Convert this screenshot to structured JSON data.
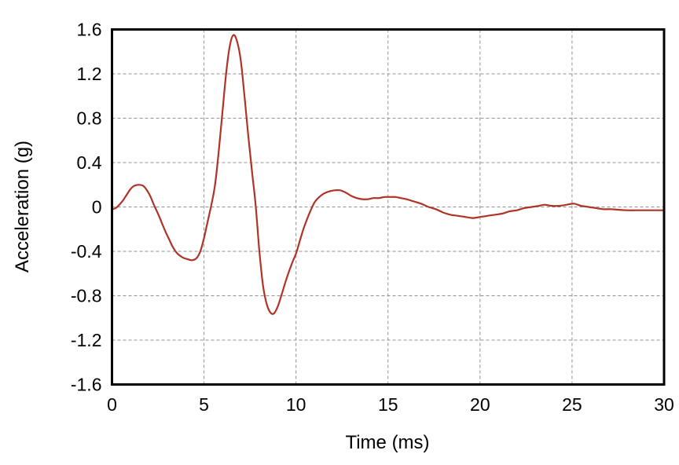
{
  "chart_data": {
    "type": "line",
    "xlabel": "Time (ms)",
    "ylabel": "Acceleration (g)",
    "xlim": [
      0,
      30
    ],
    "ylim": [
      -1.6,
      1.6
    ],
    "x_ticks": [
      0,
      5,
      10,
      15,
      20,
      25,
      30
    ],
    "x_tick_labels": [
      "0",
      "5",
      "10",
      "15",
      "20",
      "25",
      "30"
    ],
    "y_ticks": [
      -1.6,
      -1.2,
      -0.8,
      -0.4,
      0,
      0.4,
      0.8,
      1.2,
      1.6
    ],
    "y_tick_labels": [
      "-1.6",
      "-1.2",
      "-0.8",
      "-0.4",
      "0",
      "0.4",
      "0.8",
      "1.2",
      "1.6"
    ],
    "grid": true,
    "grid_style": "dashed",
    "legend": "none",
    "colors": {
      "line": "#b03327",
      "grid": "#909090",
      "axis": "#000000",
      "background": "#ffffff"
    },
    "series": [
      {
        "name": "acceleration",
        "color": "#b03327",
        "points": [
          [
            0.0,
            -0.02
          ],
          [
            0.2,
            -0.01
          ],
          [
            0.4,
            0.02
          ],
          [
            0.6,
            0.06
          ],
          [
            0.8,
            0.11
          ],
          [
            1.0,
            0.16
          ],
          [
            1.2,
            0.19
          ],
          [
            1.45,
            0.2
          ],
          [
            1.7,
            0.19
          ],
          [
            1.9,
            0.15
          ],
          [
            2.1,
            0.09
          ],
          [
            2.3,
            0.01
          ],
          [
            2.5,
            -0.06
          ],
          [
            2.7,
            -0.14
          ],
          [
            2.9,
            -0.22
          ],
          [
            3.1,
            -0.29
          ],
          [
            3.3,
            -0.36
          ],
          [
            3.5,
            -0.41
          ],
          [
            3.7,
            -0.44
          ],
          [
            3.9,
            -0.46
          ],
          [
            4.1,
            -0.47
          ],
          [
            4.35,
            -0.48
          ],
          [
            4.6,
            -0.46
          ],
          [
            4.8,
            -0.4
          ],
          [
            5.0,
            -0.28
          ],
          [
            5.2,
            -0.13
          ],
          [
            5.4,
            0.02
          ],
          [
            5.6,
            0.2
          ],
          [
            5.8,
            0.5
          ],
          [
            6.0,
            0.85
          ],
          [
            6.2,
            1.2
          ],
          [
            6.4,
            1.45
          ],
          [
            6.6,
            1.55
          ],
          [
            6.8,
            1.49
          ],
          [
            7.0,
            1.32
          ],
          [
            7.2,
            1.0
          ],
          [
            7.4,
            0.65
          ],
          [
            7.6,
            0.33
          ],
          [
            7.8,
            0.03
          ],
          [
            8.0,
            -0.38
          ],
          [
            8.2,
            -0.7
          ],
          [
            8.4,
            -0.87
          ],
          [
            8.6,
            -0.95
          ],
          [
            8.8,
            -0.96
          ],
          [
            9.0,
            -0.9
          ],
          [
            9.2,
            -0.8
          ],
          [
            9.4,
            -0.69
          ],
          [
            9.6,
            -0.59
          ],
          [
            9.8,
            -0.5
          ],
          [
            10.0,
            -0.42
          ],
          [
            10.2,
            -0.31
          ],
          [
            10.4,
            -0.2
          ],
          [
            10.6,
            -0.11
          ],
          [
            10.8,
            -0.03
          ],
          [
            11.0,
            0.04
          ],
          [
            11.2,
            0.08
          ],
          [
            11.5,
            0.12
          ],
          [
            11.8,
            0.14
          ],
          [
            12.1,
            0.15
          ],
          [
            12.4,
            0.15
          ],
          [
            12.7,
            0.13
          ],
          [
            13.0,
            0.1
          ],
          [
            13.3,
            0.08
          ],
          [
            13.6,
            0.07
          ],
          [
            13.9,
            0.07
          ],
          [
            14.2,
            0.08
          ],
          [
            14.5,
            0.08
          ],
          [
            14.8,
            0.09
          ],
          [
            15.1,
            0.09
          ],
          [
            15.4,
            0.09
          ],
          [
            15.7,
            0.08
          ],
          [
            16.0,
            0.07
          ],
          [
            16.4,
            0.05
          ],
          [
            16.8,
            0.03
          ],
          [
            17.2,
            0.0
          ],
          [
            17.6,
            -0.02
          ],
          [
            18.0,
            -0.05
          ],
          [
            18.4,
            -0.07
          ],
          [
            18.8,
            -0.08
          ],
          [
            19.2,
            -0.09
          ],
          [
            19.6,
            -0.1
          ],
          [
            20.0,
            -0.09
          ],
          [
            20.4,
            -0.08
          ],
          [
            20.8,
            -0.07
          ],
          [
            21.2,
            -0.06
          ],
          [
            21.6,
            -0.04
          ],
          [
            22.0,
            -0.03
          ],
          [
            22.4,
            -0.01
          ],
          [
            22.8,
            0.0
          ],
          [
            23.2,
            0.01
          ],
          [
            23.5,
            0.02
          ],
          [
            23.9,
            0.01
          ],
          [
            24.3,
            0.01
          ],
          [
            24.7,
            0.02
          ],
          [
            25.1,
            0.03
          ],
          [
            25.5,
            0.01
          ],
          [
            25.9,
            0.0
          ],
          [
            26.3,
            -0.01
          ],
          [
            26.7,
            -0.02
          ],
          [
            27.1,
            -0.02
          ],
          [
            27.5,
            -0.025
          ],
          [
            28.0,
            -0.03
          ],
          [
            28.5,
            -0.03
          ],
          [
            29.0,
            -0.03
          ],
          [
            29.5,
            -0.03
          ],
          [
            30.0,
            -0.03
          ]
        ]
      }
    ]
  }
}
